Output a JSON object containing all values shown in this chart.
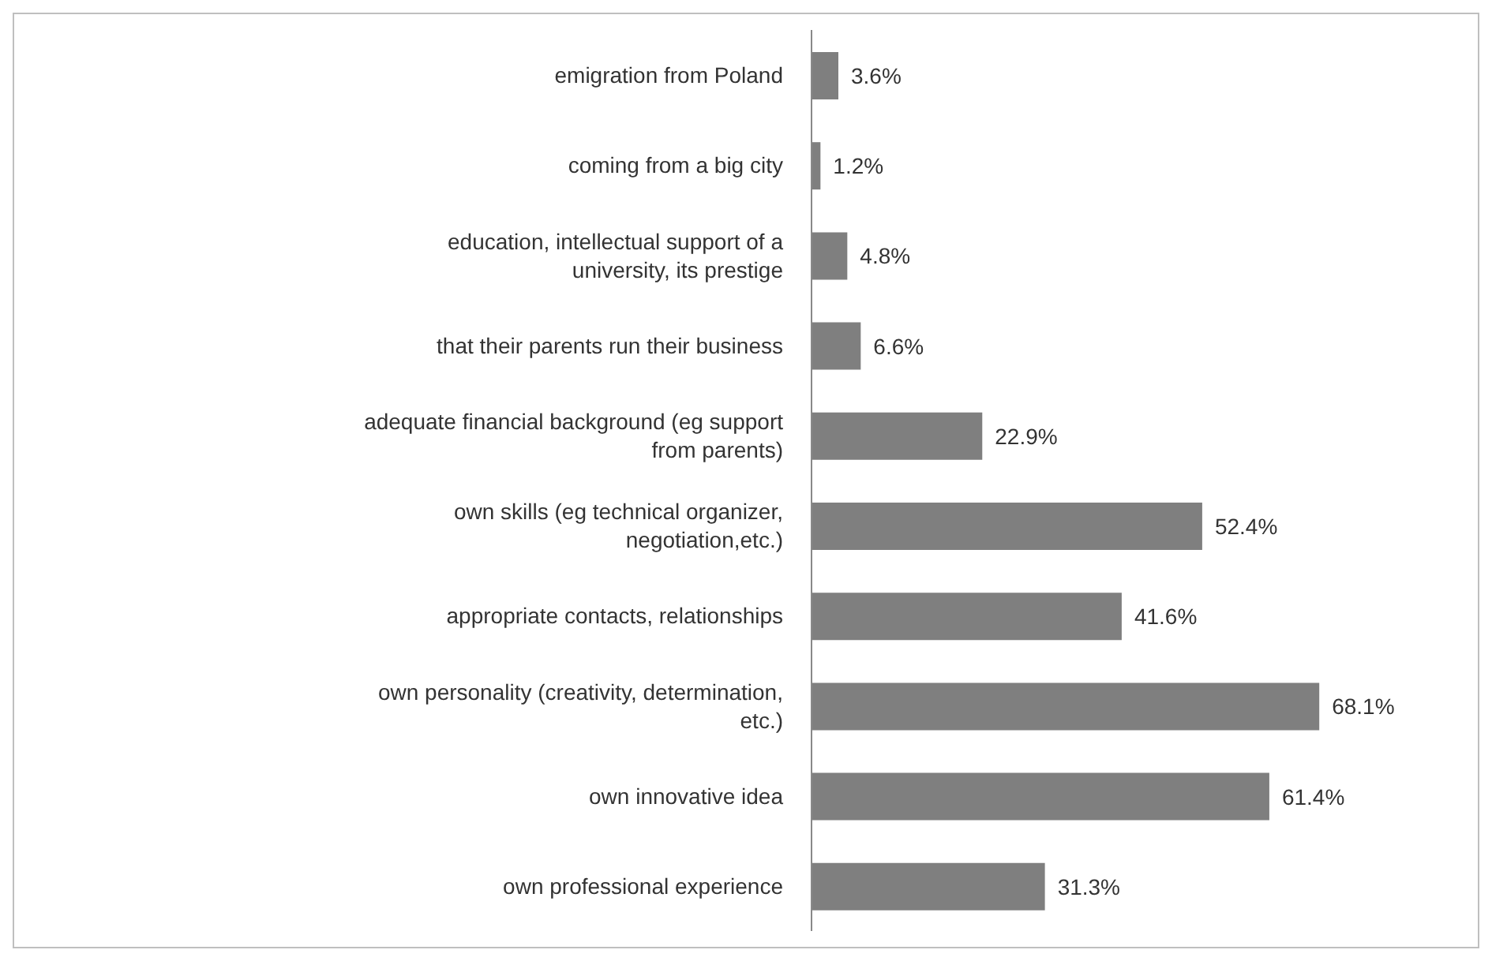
{
  "chart_data": {
    "type": "bar",
    "orientation": "horizontal",
    "categories": [
      "emigration from Poland",
      "coming from a big city",
      "education, intellectual support of a university, its prestige",
      "that their parents run their business",
      "adequate financial background (eg support from parents)",
      "own skills (eg technical organizer, negotiation,etc.)",
      "appropriate contacts, relationships",
      "own personality (creativity, determination, etc.)",
      "own innovative idea",
      "own professional experience"
    ],
    "values": [
      3.6,
      1.2,
      4.8,
      6.6,
      22.9,
      52.4,
      41.6,
      68.1,
      61.4,
      31.3
    ],
    "value_labels": [
      "3.6%",
      "1.2%",
      "4.8%",
      "6.6%",
      "22.9%",
      "52.4%",
      "41.6%",
      "68.1%",
      "61.4%",
      "31.3%"
    ],
    "color": "#7f7f7f"
  }
}
